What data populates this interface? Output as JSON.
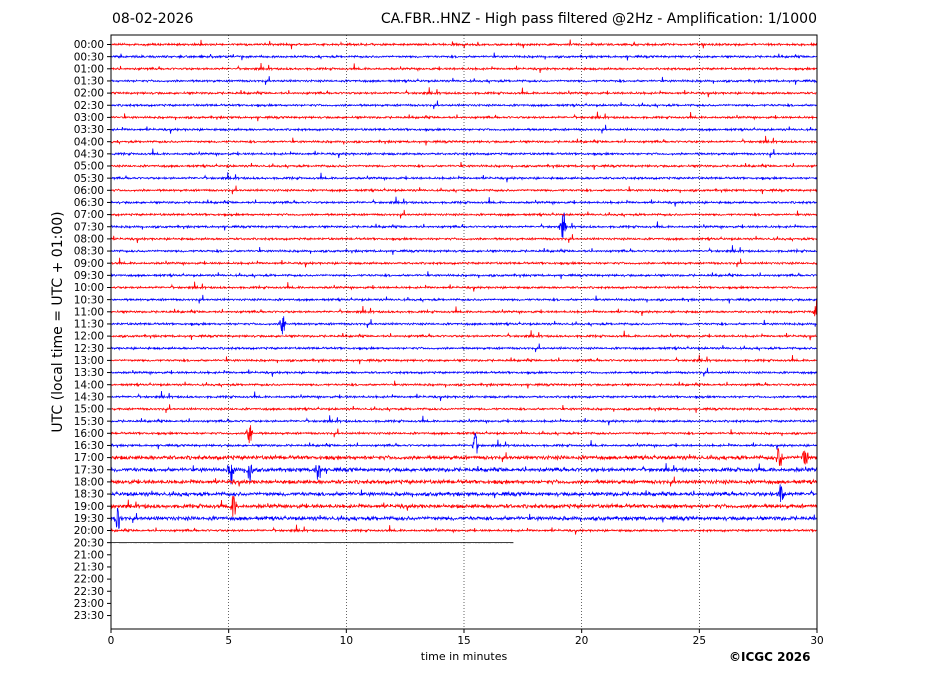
{
  "header": {
    "date": "08-02-2026",
    "title": "CA.FBR..HNZ - High pass filtered @2Hz - Amplification: 1/1000"
  },
  "credit": "©ICGC 2026",
  "chart_data": {
    "type": "line",
    "title": "CA.FBR..HNZ - High pass filtered @2Hz - Amplification: 1/1000",
    "xlabel": "time in minutes",
    "ylabel": "UTC (local time = UTC + 01:00)",
    "xlim": [
      0,
      30
    ],
    "x_ticks": [
      0,
      5,
      10,
      15,
      20,
      25,
      30
    ],
    "x_tick_labels": [
      "0",
      "5",
      "10",
      "15",
      "20",
      "25",
      "30"
    ],
    "row_labels": [
      "00:00",
      "00:30",
      "01:00",
      "01:30",
      "02:00",
      "02:30",
      "03:00",
      "03:30",
      "04:00",
      "04:30",
      "05:00",
      "05:30",
      "06:00",
      "06:30",
      "07:00",
      "07:30",
      "08:00",
      "08:30",
      "09:00",
      "09:30",
      "10:00",
      "10:30",
      "11:00",
      "11:30",
      "12:00",
      "12:30",
      "13:00",
      "13:30",
      "14:00",
      "14:30",
      "15:00",
      "15:30",
      "16:00",
      "16:30",
      "17:00",
      "17:30",
      "18:00",
      "18:30",
      "19:00",
      "19:30",
      "20:00",
      "20:30",
      "21:00",
      "21:30",
      "22:00",
      "22:30",
      "23:00",
      "23:30"
    ],
    "grid": "vertical dotted lines at each x tick",
    "colors": {
      "even_rows": "#ff0000",
      "odd_rows": "#0000ff",
      "last_trace": "#000000"
    },
    "last_trace": {
      "row": "20:30",
      "end_minute": 17.1
    },
    "notable_events": [
      {
        "row": "07:30",
        "minute": 19.2
      },
      {
        "row": "11:00",
        "minute": 30.0
      },
      {
        "row": "11:30",
        "minute": 7.3
      },
      {
        "row": "16:00",
        "minute": 5.9
      },
      {
        "row": "16:30",
        "minute": 15.5
      },
      {
        "row": "17:00",
        "minute": 28.4
      },
      {
        "row": "17:00",
        "minute": 29.5
      },
      {
        "row": "17:30",
        "minute": 5.1
      },
      {
        "row": "17:30",
        "minute": 5.9
      },
      {
        "row": "17:30",
        "minute": 8.8
      },
      {
        "row": "18:30",
        "minute": 28.5
      },
      {
        "row": "19:00",
        "minute": 5.2
      },
      {
        "row": "19:30",
        "minute": 0.3
      }
    ]
  }
}
